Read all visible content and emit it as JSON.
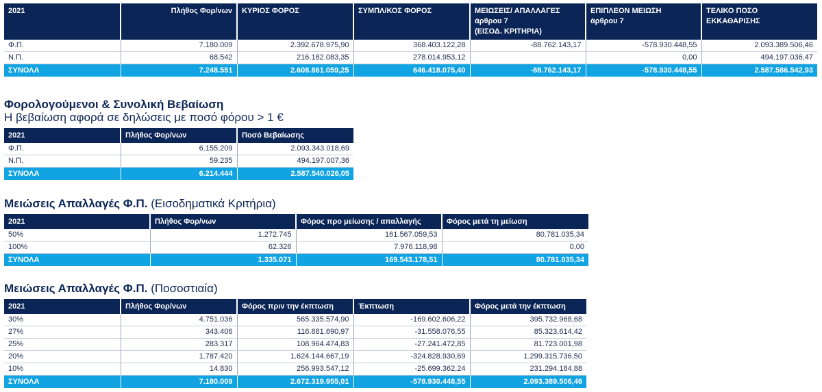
{
  "table1": {
    "headers": [
      "2021",
      "Πλήθος Φορ/νων",
      "ΚΥΡΙΟΣ ΦΟΡΟΣ",
      "ΣΥΜΠΛ/ΚΟΣ ΦΟΡΟΣ",
      "ΜΕΙΩΣΕΙΣ/ ΑΠΑΛΛΑΓΕΣ\nάρθρου 7\n(ΕΙΣΟΔ. ΚΡΙΤΗΡΙΑ)",
      "ΕΠΙΠΛΕΟΝ ΜΕΙΩΣΗ\nάρθρου 7",
      "ΤΕΛΙΚΟ ΠΟΣΟ\nΕΚΚΑΘΑΡΙΣΗΣ"
    ],
    "rows": [
      [
        "Φ.Π.",
        "7.180.009",
        "2.392.678.975,90",
        "368.403.122,28",
        "-88.762.143,17",
        "-578.930.448,55",
        "2.093.389.506,46"
      ],
      [
        "Ν.Π.",
        "68.542",
        "216.182.083,35",
        "278.014.953,12",
        "",
        "0,00",
        "494.197.036,47"
      ]
    ],
    "total": [
      "ΣΥΝΟΛΑ",
      "7.248.551",
      "2.608.861.059,25",
      "646.418.075,40",
      "-88.762.143,17",
      "-578.930.448,55",
      "2.587.586.542,93"
    ]
  },
  "section2": {
    "title": "Φορολογούμενοι & Συνολική Βεβαίωση",
    "subtitle": "Η βεβαίωση αφορά σε δηλώσεις με ποσό φόρου > 1 €",
    "headers": [
      "2021",
      "Πλήθος Φορ/νων",
      "Ποσό Βεβαίωσης"
    ],
    "rows": [
      [
        "Φ.Π.",
        "6.155.209",
        "2.093.343.018,69"
      ],
      [
        "Ν.Π.",
        "59.235",
        "494.197.007,36"
      ]
    ],
    "total": [
      "ΣΥΝΟΛΑ",
      "6.214.444",
      "2.587.540.026,05"
    ]
  },
  "section3": {
    "title_bold": "Μειώσεις Απαλλαγές Φ.Π.",
    "title_normal": "(Εισοδηματικά Κριτήρια)",
    "headers": [
      "2021",
      "Πλήθος Φορ/νων",
      "Φόρος προ μείωσης / απαλλαγής",
      "Φόρος μετά τη μείωση"
    ],
    "rows": [
      [
        "50%",
        "1.272.745",
        "161.567.059,53",
        "80.781.035,34"
      ],
      [
        "100%",
        "62.326",
        "7.976.118,98",
        "0,00"
      ]
    ],
    "total": [
      "ΣΥΝΟΛΑ",
      "1.335.071",
      "169.543.178,51",
      "80.781.035,34"
    ]
  },
  "section4": {
    "title_bold": "Μειώσεις Απαλλαγές Φ.Π.",
    "title_normal": "(Ποσοστιαία)",
    "headers": [
      "2021",
      "Πλήθος Φορ/νων",
      "Φόρος πριν την έκπτωση",
      "Έκπτωση",
      "Φόρος μετά την έκπτωση"
    ],
    "rows": [
      [
        "30%",
        "4.751.036",
        "565.335.574,90",
        "-169.602.606,22",
        "395.732.968,68"
      ],
      [
        "27%",
        "343.406",
        "116.881.690,97",
        "-31.558.076,55",
        "85.323.614,42"
      ],
      [
        "25%",
        "283.317",
        "108.964.474,83",
        "-27.241.472,85",
        "81.723.001,98"
      ],
      [
        "20%",
        "1.787.420",
        "1.624.144.667,19",
        "-324.828.930,69",
        "1.299.315.736,50"
      ],
      [
        "10%",
        "14.830",
        "256.993.547,12",
        "-25.699.362,24",
        "231.294.184,88"
      ]
    ],
    "total": [
      "ΣΥΝΟΛΑ",
      "7.180.009",
      "2.672.319.955,01",
      "-578.930.448,55",
      "2.093.389.506,46"
    ]
  }
}
